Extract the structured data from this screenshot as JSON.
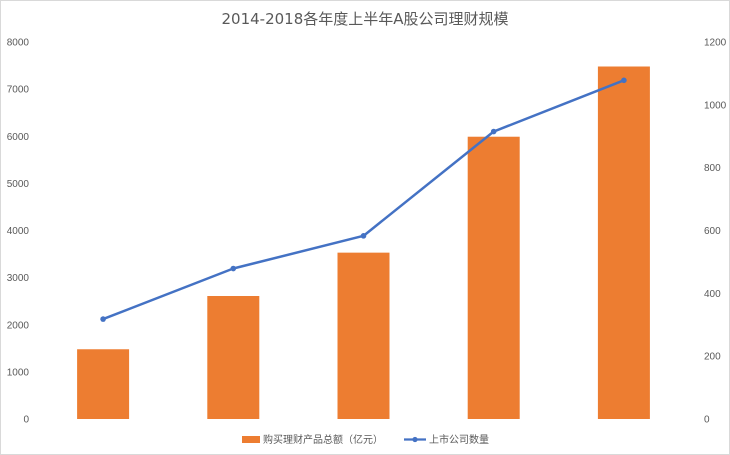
{
  "chart_data": {
    "type": "bar",
    "title": "2014-2018各年度上半年A股公司理财规模",
    "categories": [
      "",
      "",
      "",
      "",
      ""
    ],
    "series": [
      {
        "name": "购买理财产品总额（亿元）",
        "kind": "bar",
        "axis": "left",
        "color": "#ED7D31",
        "values": [
          1480,
          2610,
          3530,
          5990,
          7480
        ]
      },
      {
        "name": "上市公司数量",
        "kind": "line",
        "axis": "right",
        "color": "#4472C4",
        "values": [
          318,
          479,
          583,
          915,
          1078
        ]
      }
    ],
    "ylim": [
      0,
      8000
    ],
    "y_ticks": [
      "0",
      "1000",
      "2000",
      "3000",
      "4000",
      "5000",
      "6000",
      "7000",
      "8000"
    ],
    "y2lim": [
      0,
      1200
    ],
    "y2_ticks": [
      "0",
      "200",
      "400",
      "600",
      "800",
      "1000",
      "1200"
    ],
    "grid": false,
    "legend_position": "bottom"
  }
}
